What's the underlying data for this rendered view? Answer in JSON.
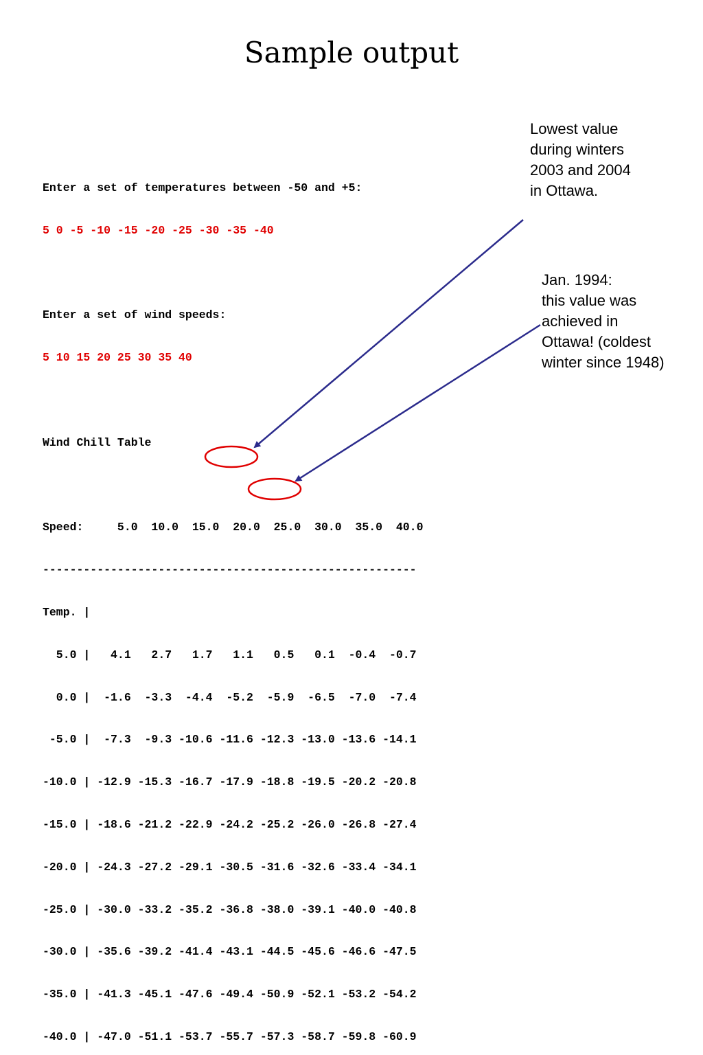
{
  "title": "Sample output",
  "prompt_temps": "Enter a set of temperatures between -50 and +5:",
  "input_temps": "5 0 -5 -10 -15 -20 -25 -30 -35 -40",
  "prompt_winds": "Enter a set of wind speeds:",
  "input_winds": "5 10 15 20 25 30 35 40",
  "table_title": "Wind Chill Table",
  "table": {
    "header": "Speed:     5.0  10.0  15.0  20.0  25.0  30.0  35.0  40.0",
    "separator": "-------------------------------------------------------",
    "temp_label": "Temp. |",
    "rows": [
      "  5.0 |   4.1   2.7   1.7   1.1   0.5   0.1  -0.4  -0.7",
      "  0.0 |  -1.6  -3.3  -4.4  -5.2  -5.9  -6.5  -7.0  -7.4",
      " -5.0 |  -7.3  -9.3 -10.6 -11.6 -12.3 -13.0 -13.6 -14.1",
      "-10.0 | -12.9 -15.3 -16.7 -17.9 -18.8 -19.5 -20.2 -20.8",
      "-15.0 | -18.6 -21.2 -22.9 -24.2 -25.2 -26.0 -26.8 -27.4",
      "-20.0 | -24.3 -27.2 -29.1 -30.5 -31.6 -32.6 -33.4 -34.1",
      "-25.0 | -30.0 -33.2 -35.2 -36.8 -38.0 -39.1 -40.0 -40.8",
      "-30.0 | -35.6 -39.2 -41.4 -43.1 -44.5 -45.6 -46.6 -47.5",
      "-35.0 | -41.3 -45.1 -47.6 -49.4 -50.9 -52.1 -53.2 -54.2",
      "-40.0 | -47.0 -51.1 -53.7 -55.7 -57.3 -58.7 -59.8 -60.9"
    ]
  },
  "annotations": {
    "lowest": [
      "Lowest value",
      "during winters",
      "2003 and 2004",
      "in Ottawa."
    ],
    "jan1994": [
      "Jan. 1994:",
      "this value was",
      "achieved in",
      "Ottawa! (coldest",
      "winter since 1948)"
    ]
  },
  "colors": {
    "input": "#e00000",
    "arrow": "#2b2b8c",
    "circle": "#e00000"
  }
}
